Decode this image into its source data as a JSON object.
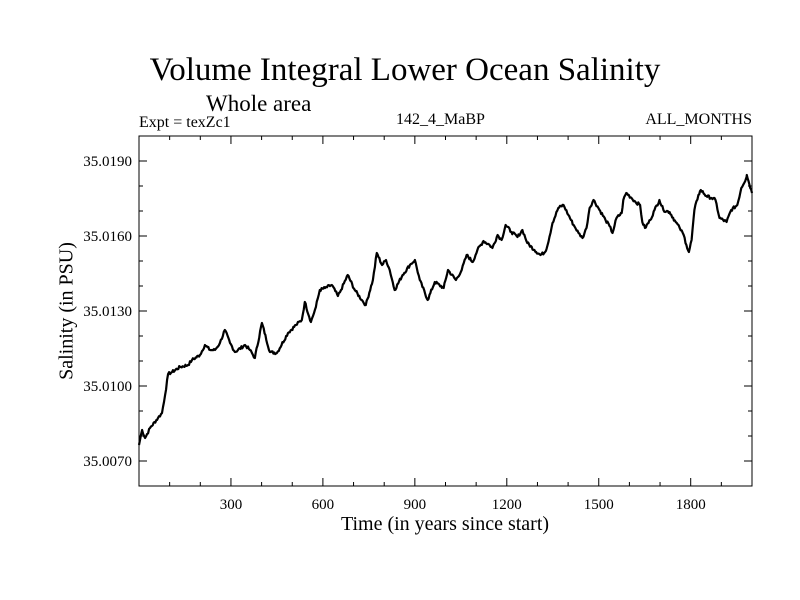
{
  "chart_data": {
    "type": "line",
    "title": "Volume Integral Lower Ocean Salinity",
    "subtitle": "Whole area",
    "annotations": {
      "left": "Expt = texZc1",
      "center": "142_4_MaBP",
      "right": "ALL_MONTHS"
    },
    "xlabel": "Time (in years since start)",
    "ylabel": "Salinity (in PSU)",
    "xlim": [
      0,
      2000
    ],
    "ylim": [
      35.006,
      35.02
    ],
    "xticks": [
      300,
      600,
      900,
      1200,
      1500,
      1800
    ],
    "xtick_labels": [
      "300",
      "600",
      "900",
      "1200",
      "1500",
      "1800"
    ],
    "x_minor_step": 100,
    "yticks": [
      35.007,
      35.01,
      35.013,
      35.016,
      35.019
    ],
    "ytick_labels": [
      "35.0070",
      "35.0100",
      "35.0130",
      "35.0160",
      "35.0190"
    ],
    "y_minor_step": 0.001,
    "grid": false,
    "legend": "none",
    "line_color": "#000000",
    "series": [
      {
        "name": "Volume Integral Lower Ocean Salinity",
        "x": [
          0,
          10,
          20,
          36,
          62,
          75,
          85,
          95,
          108,
          134,
          160,
          173,
          199,
          215,
          232,
          248,
          264,
          280,
          297,
          313,
          346,
          362,
          378,
          401,
          427,
          450,
          486,
          512,
          531,
          541,
          561,
          577,
          590,
          607,
          629,
          649,
          659,
          681,
          704,
          727,
          740,
          763,
          776,
          793,
          806,
          818,
          834,
          860,
          884,
          900,
          916,
          942,
          965,
          994,
          1008,
          1034,
          1053,
          1069,
          1089,
          1104,
          1124,
          1144,
          1153,
          1170,
          1183,
          1196,
          1215,
          1235,
          1251,
          1267,
          1290,
          1310,
          1325,
          1333,
          1349,
          1368,
          1385,
          1401,
          1418,
          1434,
          1447,
          1460,
          1470,
          1483,
          1499,
          1522,
          1535,
          1545,
          1558,
          1575,
          1580,
          1590,
          1607,
          1620,
          1635,
          1642,
          1651,
          1668,
          1682,
          1698,
          1711,
          1731,
          1751,
          1764,
          1777,
          1786,
          1794,
          1803,
          1812,
          1825,
          1833,
          1851,
          1868,
          1881,
          1894,
          1917,
          1932,
          1952,
          1965,
          1981,
          1983,
          2000
        ],
        "y": [
          35.00764,
          35.00824,
          35.00792,
          35.00832,
          35.00872,
          35.00892,
          35.00964,
          35.01048,
          35.01056,
          35.01076,
          35.01084,
          35.01104,
          35.01124,
          35.01164,
          35.01144,
          35.01144,
          35.01172,
          35.01224,
          35.01172,
          35.01136,
          35.01164,
          35.01144,
          35.01112,
          35.01252,
          35.01136,
          35.01132,
          35.01212,
          35.01244,
          35.01264,
          35.01336,
          35.01256,
          35.01316,
          35.01384,
          35.01392,
          35.01404,
          35.0136,
          35.01384,
          35.01444,
          35.01384,
          35.01344,
          35.01324,
          35.01424,
          35.01532,
          35.01484,
          35.01504,
          35.01464,
          35.01384,
          35.01444,
          35.01484,
          35.01504,
          35.01424,
          35.01344,
          35.01416,
          35.01392,
          35.01464,
          35.01424,
          35.01464,
          35.01524,
          35.01496,
          35.01544,
          35.0158,
          35.01564,
          35.01552,
          35.01604,
          35.01584,
          35.01644,
          35.01616,
          35.01596,
          35.01624,
          35.01572,
          35.01544,
          35.01524,
          35.01536,
          35.01564,
          35.01652,
          35.01712,
          35.01724,
          35.01684,
          35.01644,
          35.01612,
          35.01592,
          35.01632,
          35.01712,
          35.01744,
          35.01712,
          35.01664,
          35.0164,
          35.01612,
          35.01672,
          35.01692,
          35.01744,
          35.01772,
          35.01752,
          35.01736,
          35.01724,
          35.01656,
          35.01632,
          35.01664,
          35.01704,
          35.01744,
          35.01704,
          35.01696,
          35.01656,
          35.01632,
          35.01604,
          35.01564,
          35.01536,
          35.01584,
          35.01704,
          35.01764,
          35.01784,
          35.0176,
          35.01752,
          35.01744,
          35.01672,
          35.01656,
          35.01704,
          35.01724,
          35.01792,
          35.01832,
          35.01844,
          35.01772
        ]
      }
    ]
  }
}
